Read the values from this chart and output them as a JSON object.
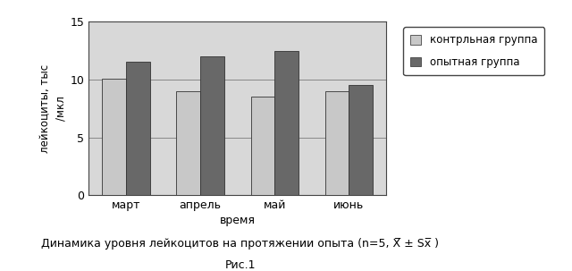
{
  "categories": [
    "март",
    "апрель",
    "май",
    "июнь"
  ],
  "control_values": [
    10.1,
    9.0,
    8.5,
    9.0
  ],
  "experimental_values": [
    11.5,
    12.0,
    12.5,
    9.5
  ],
  "ylabel_line1": "лейкоциты, тыс",
  "ylabel_line2": "/мкл",
  "xlabel": "время",
  "ylim": [
    0,
    15
  ],
  "yticks": [
    0,
    5,
    10,
    15
  ],
  "control_color": "#c8c8c8",
  "experimental_color": "#686868",
  "control_label": "контрльная группа",
  "experimental_label": "опытная группа",
  "bar_width": 0.32,
  "caption_line1": "Динамика уровня лейкоцитов на протяжении опыта (n=5, X̅ ± Sx̅ )",
  "caption_line2": "Рис.1",
  "plot_bg": "#d8d8d8",
  "fig_bg": "#ffffff",
  "grid_color": "#888888",
  "legend_bg": "#ffffff",
  "border_color": "#333333"
}
